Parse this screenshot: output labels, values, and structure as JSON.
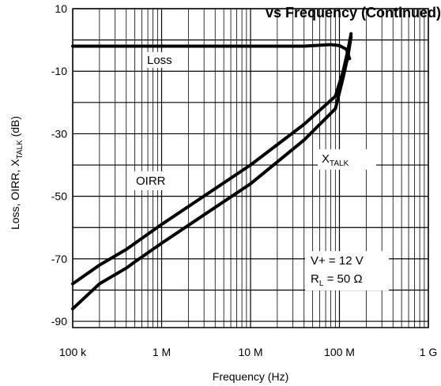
{
  "chart_data": {
    "type": "line",
    "title": "vs Frequency (Continued)",
    "xlabel": "Frequency (Hz)",
    "ylabel_main": "Loss, OIRR, X",
    "ylabel_sub": "TALK",
    "ylabel_unit": " (dB)",
    "x_scale": "log",
    "xlim": [
      100000,
      1000000000
    ],
    "ylim": [
      -92,
      10
    ],
    "grid": true,
    "x_ticks": [
      {
        "value": 100000,
        "label": "100 k"
      },
      {
        "value": 1000000,
        "label": "1 M"
      },
      {
        "value": 10000000,
        "label": "10 M"
      },
      {
        "value": 100000000,
        "label": "100 M"
      },
      {
        "value": 1000000000,
        "label": "1 G"
      }
    ],
    "y_ticks": [
      {
        "value": 10,
        "label": "10"
      },
      {
        "value": -10,
        "label": "-10"
      },
      {
        "value": -30,
        "label": "-30"
      },
      {
        "value": -50,
        "label": "-50"
      },
      {
        "value": -70,
        "label": "-70"
      },
      {
        "value": -90,
        "label": "-90"
      }
    ],
    "series": [
      {
        "name": "Loss",
        "x": [
          100000,
          1000000,
          10000000,
          40000000,
          80000000,
          100000000,
          120000000,
          130000000
        ],
        "y": [
          -2,
          -2,
          -2,
          -2,
          -1.5,
          -1.8,
          -3,
          -6
        ]
      },
      {
        "name": "OIRR",
        "x": [
          100000,
          200000,
          400000,
          1000000,
          10000000,
          40000000,
          90000000,
          110000000,
          125000000,
          135000000
        ],
        "y": [
          -78,
          -72,
          -67,
          -59,
          -40,
          -27,
          -18,
          -10,
          -3,
          2
        ]
      },
      {
        "name": "XTALK",
        "x": [
          100000,
          200000,
          400000,
          500000,
          1000000,
          10000000,
          40000000,
          90000000,
          110000000,
          125000000,
          135000000
        ],
        "y": [
          -86,
          -78,
          -73,
          -71,
          -65,
          -46,
          -32,
          -22,
          -12,
          -5,
          1
        ]
      }
    ],
    "annotations": {
      "loss": "Loss",
      "oirr": "OIRR",
      "xtalk_main": "X",
      "xtalk_sub": "TALK",
      "cond_vplus": "V+ = 12 V",
      "cond_rl_main": "R",
      "cond_rl_sub": "L",
      "cond_rl_rest": " = 50 Ω"
    }
  }
}
